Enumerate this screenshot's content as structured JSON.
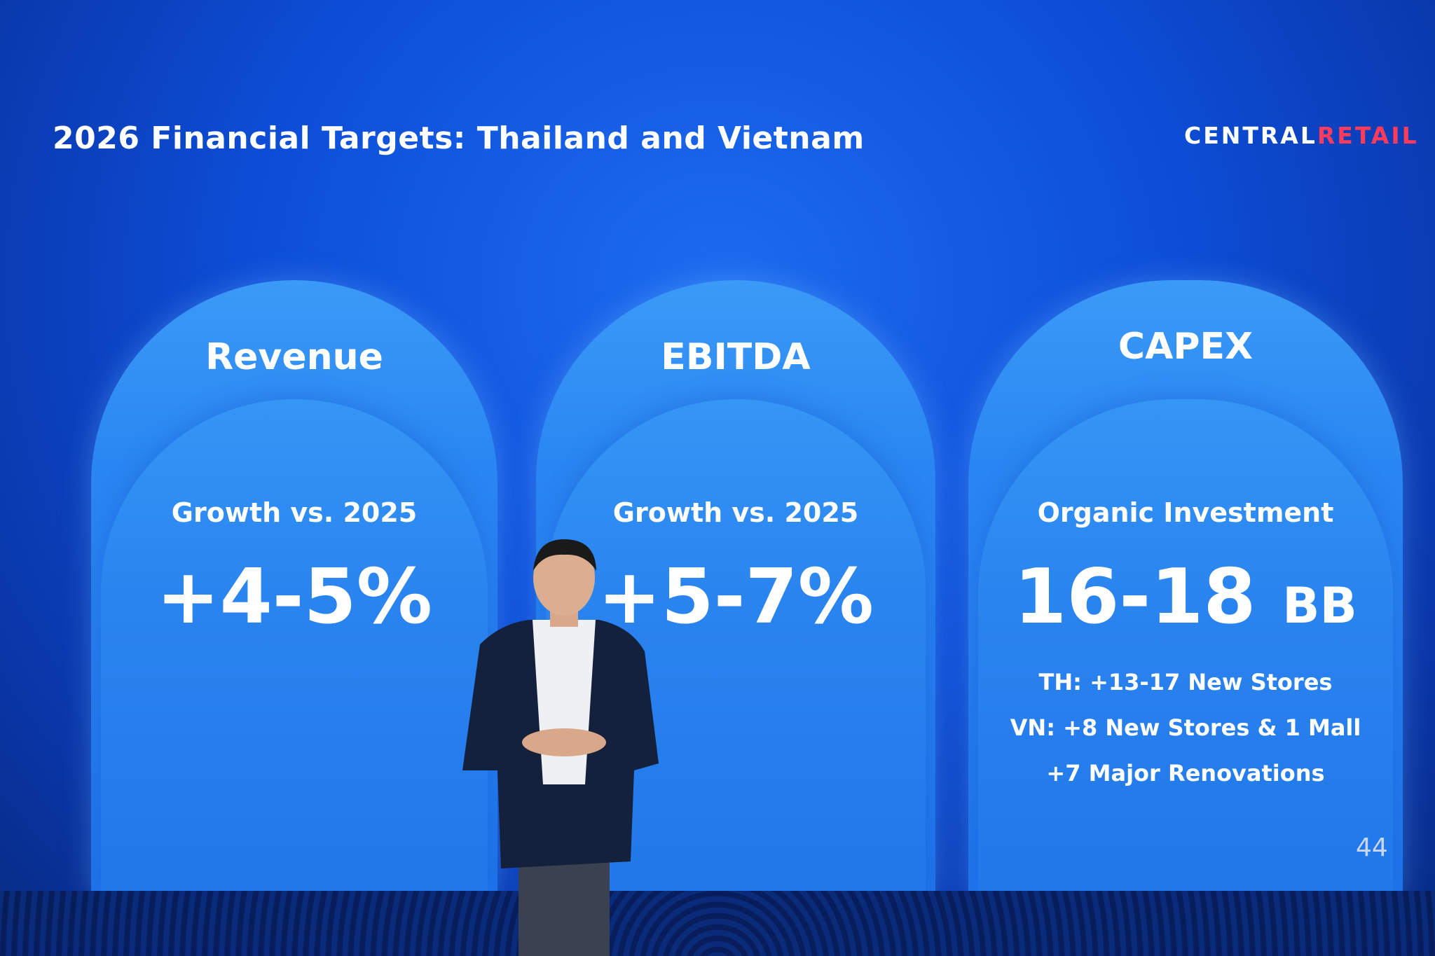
{
  "slide": {
    "title": "2026 Financial Targets: Thailand and Vietnam",
    "logo": {
      "part1": "CENTRAL",
      "part2": "RETAIL",
      "part2_color": "#ff3b5c"
    },
    "page_number": "44",
    "cards": [
      {
        "heading": "Revenue",
        "subtitle": "Growth vs. 2025",
        "value": "+4-5%"
      },
      {
        "heading": "EBITDA",
        "subtitle": "Growth vs. 2025",
        "value": "+5-7%"
      },
      {
        "heading": "CAPEX",
        "subtitle": "Organic Investment",
        "value": "16-18",
        "unit": "BB",
        "bullets": [
          "TH: +13-17 New Stores",
          "VN: +8 New Stores & 1 Mall",
          "+7 Major Renovations"
        ]
      }
    ]
  },
  "colors": {
    "background": "#0d4ed8",
    "card": "#2a86f2"
  }
}
